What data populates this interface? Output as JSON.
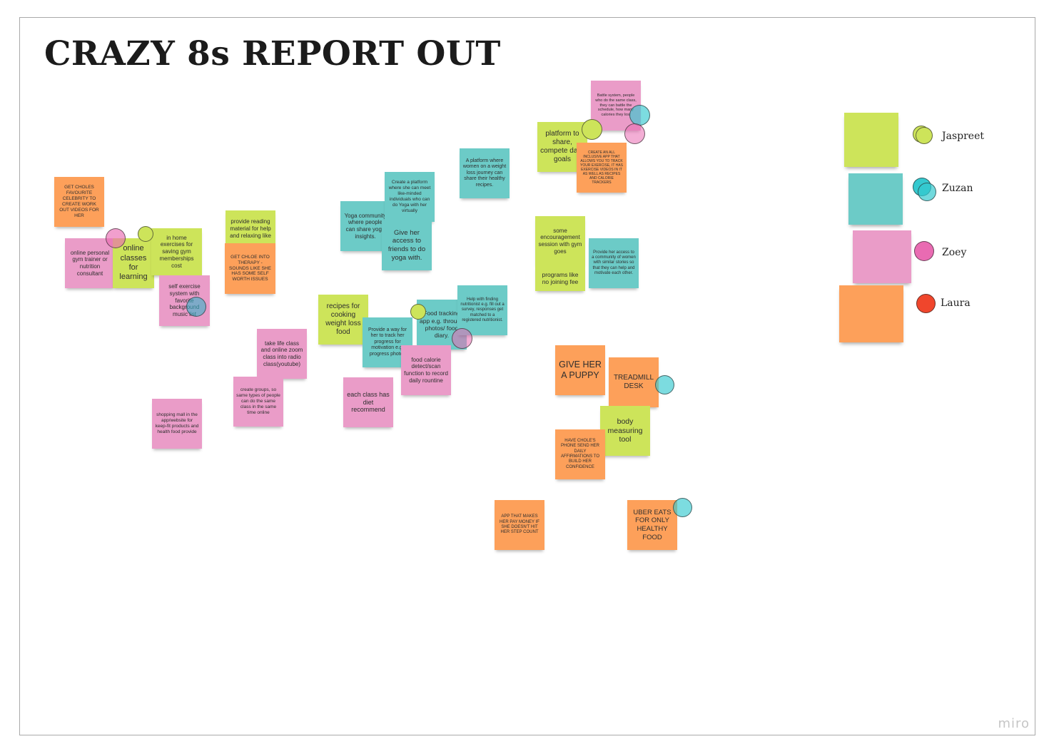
{
  "board": {
    "title": "CRAZY 8s REPORT OUT",
    "watermark": "miro"
  },
  "colors": {
    "yellow_green": "#cde45a",
    "teal": "#6ccbc7",
    "pink": "#ea9cc8",
    "orange": "#fda05a",
    "jaspreet": "#cde45a",
    "zuzan": "#35c9cf",
    "zoey": "#e96bb2",
    "laura": "#f0462c"
  },
  "notes": [
    {
      "text": "GET CHOLES FAVOURITE CELEBRITY TO CREATE WORK OUT VIDEOS FOR HER"
    },
    {
      "text": "online personal gym trainer or nutrition consultant"
    },
    {
      "text": "online classes for learning"
    },
    {
      "text": "in home exercises for saving gym memberships cost"
    },
    {
      "text": "self exercise system with favorite background music list"
    },
    {
      "text": "provide reading material for help and relaxing like"
    },
    {
      "text": "GET CHLOE INTO THERAPY - SOUNDS LIKE SHE HAS SOME SELF WORTH ISSUES"
    },
    {
      "text": "Yoga community where people can share yoga insights."
    },
    {
      "text": "Create a platform where she can meet like-minded individuals who can do Yoga with her virtually"
    },
    {
      "text": "Give her access to friends to do yoga with."
    },
    {
      "text": "A platform where women on a weight loss journey can share their healthy recipes."
    },
    {
      "text": "Battle system, people who do the same class, they can battle the schedule, how many calories they lost"
    },
    {
      "text": "platform to share, compete daily goals"
    },
    {
      "text": "CREATE AN ALL INCLUSIVE APP THAT ALLOWS YOU TO TRACK YOUR EXERCISE, IT HAS EXERCISE VIDEOS IN IT AS WELL AS RECIPES AND CALORIE TRACKERS"
    },
    {
      "text": "some encouragement session with gym goes"
    },
    {
      "text": "programs like no joining fee"
    },
    {
      "text": "Provide her access to a community of women with similar stories so that they can help and motivate each other."
    },
    {
      "text": "recipes for cooking weight loss food"
    },
    {
      "text": "Provide a way for her to track her progress for motivation e.g. progress photos"
    },
    {
      "text": "Food tracking app e.g. through photos/ food diary."
    },
    {
      "text": "Help with finding nutritionist e.g. fill out a survey, responses get matched to a registered nutritionist."
    },
    {
      "text": "food calorie detect/scan function to record daily rountine"
    },
    {
      "text": "take life class and online zoom class into radio class(youtube)"
    },
    {
      "text": "create groups, so same types of people can do the same class in the same time online"
    },
    {
      "text": "shopping mall in the app/website for keep-fit products and health food provide"
    },
    {
      "text": "each class has diet recommend"
    },
    {
      "text": "GIVE HER A PUPPY"
    },
    {
      "text": "TREADMILL DESK"
    },
    {
      "text": "body measuring tool"
    },
    {
      "text": "HAVE CHOLE'S PHONE SEND HER DAILY AFFIRMATIONS TO BUILD HER CONFIDENCE"
    },
    {
      "text": "APP THAT MAKES HER PAY MONEY IF SHE DOESN'T HIT HER STEP COUNT"
    },
    {
      "text": "UBER EATS FOR ONLY HEALTHY FOOD"
    }
  ],
  "legend": [
    {
      "name": "Jaspreet"
    },
    {
      "name": "Zuzan"
    },
    {
      "name": "Zoey"
    },
    {
      "name": "Laura"
    }
  ]
}
